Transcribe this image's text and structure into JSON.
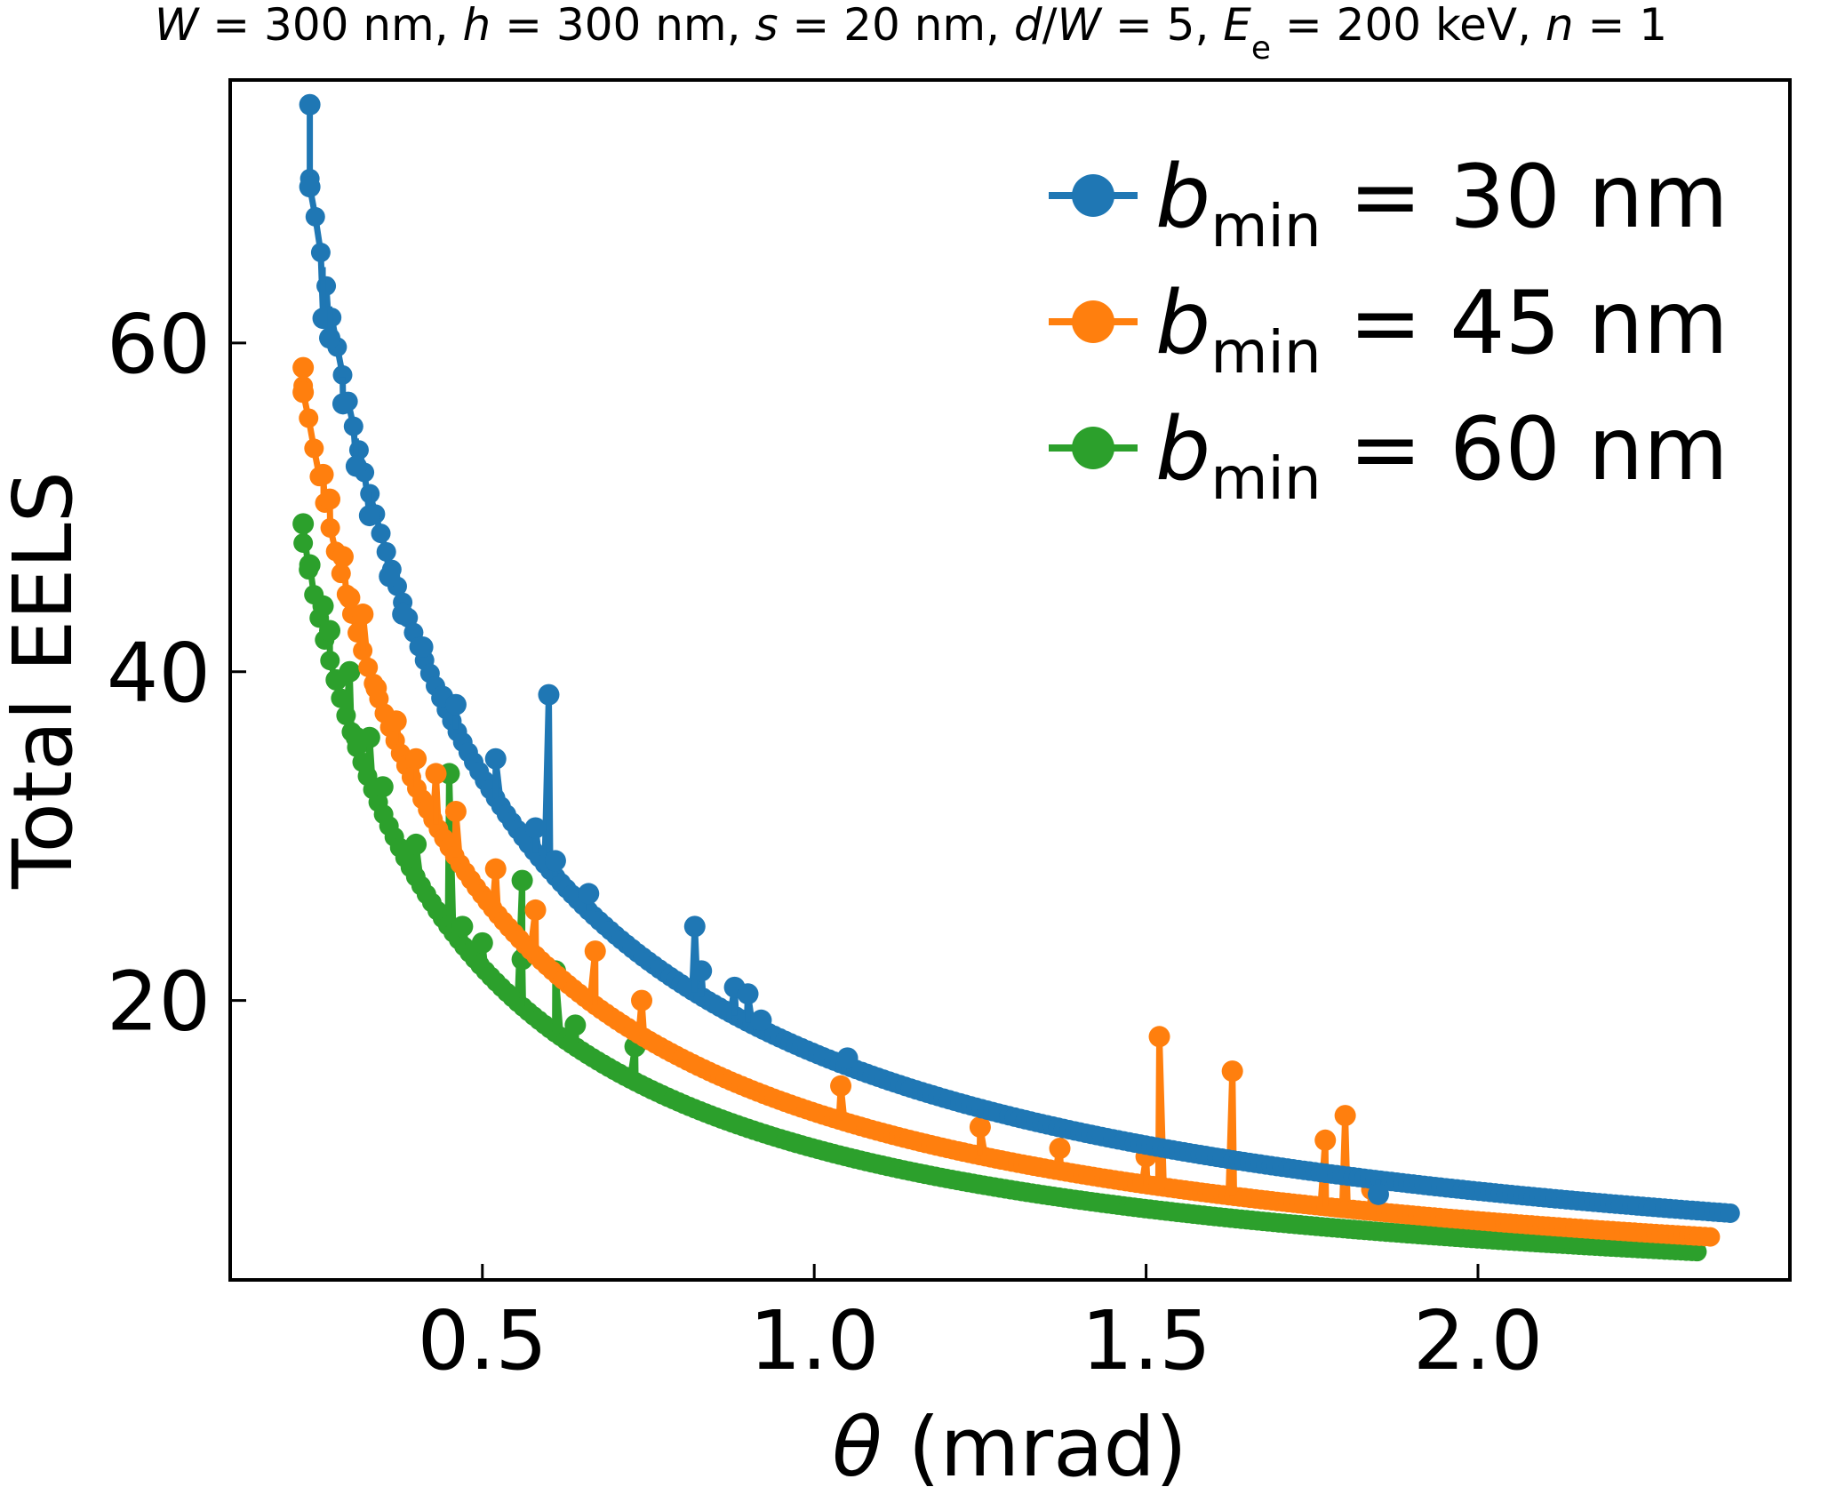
{
  "chart_data": {
    "type": "line",
    "title_parts": [
      "W",
      " = 300 nm, ",
      "h",
      " = 300 nm, ",
      "s",
      " = 20 nm, ",
      "d",
      "/",
      "W",
      " = 5, ",
      "E",
      "e",
      " = 200 keV, ",
      "n",
      " = 1"
    ],
    "xlabel_symbol": "θ",
    "xlabel_unit": " (mrad)",
    "ylabel": "Total EELS",
    "xlim": [
      0.12,
      2.47
    ],
    "ylim": [
      3,
      76
    ],
    "xticks": [
      0.5,
      1.0,
      1.5,
      2.0
    ],
    "xtick_labels": [
      "0.5",
      "1.0",
      "1.5",
      "2.0"
    ],
    "yticks": [
      20,
      40,
      60
    ],
    "ytick_labels": [
      "20",
      "40",
      "60"
    ],
    "grid": false,
    "legend_position": "top-right",
    "series": [
      {
        "name_symbol": "b",
        "name_sub": "min",
        "name_rest": " = 30 nm",
        "color": "#1f77b4",
        "theta_min": 0.24,
        "theta_max": 2.38,
        "base_curve_k": 16.8,
        "points": [
          [
            0.24,
            74.5
          ],
          [
            0.24,
            69.5
          ],
          [
            0.26,
            61.5
          ],
          [
            0.27,
            60.3
          ],
          [
            0.29,
            56.3
          ],
          [
            0.31,
            52.5
          ],
          [
            0.33,
            49.5
          ],
          [
            0.36,
            45.8
          ],
          [
            0.38,
            43.5
          ],
          [
            0.41,
            41.5
          ],
          [
            0.44,
            38.5
          ],
          [
            0.46,
            38.0
          ],
          [
            0.52,
            34.7
          ],
          [
            0.58,
            30.5
          ],
          [
            0.6,
            38.6
          ],
          [
            0.61,
            28.5
          ],
          [
            0.66,
            26.5
          ],
          [
            0.82,
            24.5
          ],
          [
            0.83,
            21.8
          ],
          [
            0.88,
            20.8
          ],
          [
            0.9,
            20.4
          ],
          [
            0.92,
            18.8
          ],
          [
            1.05,
            16.5
          ],
          [
            1.85,
            8.2
          ]
        ]
      },
      {
        "name_symbol": "b",
        "name_sub": "min",
        "name_rest": " = 45 nm",
        "color": "#ff7f0e",
        "theta_min": 0.23,
        "theta_max": 2.35,
        "base_curve_k": 13.2,
        "points": [
          [
            0.23,
            58.5
          ],
          [
            0.23,
            57.0
          ],
          [
            0.26,
            52.0
          ],
          [
            0.27,
            50.5
          ],
          [
            0.29,
            47.0
          ],
          [
            0.3,
            44.5
          ],
          [
            0.32,
            43.5
          ],
          [
            0.34,
            39.0
          ],
          [
            0.37,
            37.0
          ],
          [
            0.4,
            34.7
          ],
          [
            0.43,
            33.8
          ],
          [
            0.46,
            31.5
          ],
          [
            0.52,
            28.0
          ],
          [
            0.58,
            25.5
          ],
          [
            0.67,
            23.0
          ],
          [
            0.74,
            20.0
          ],
          [
            1.04,
            14.8
          ],
          [
            1.25,
            12.3
          ],
          [
            1.37,
            11.0
          ],
          [
            1.5,
            10.5
          ],
          [
            1.52,
            17.8
          ],
          [
            1.63,
            15.7
          ],
          [
            1.77,
            11.5
          ],
          [
            1.8,
            13.0
          ],
          [
            1.84,
            8.5
          ]
        ]
      },
      {
        "name_symbol": "b",
        "name_sub": "min",
        "name_rest": " = 60 nm",
        "color": "#2ca02c",
        "theta_min": 0.23,
        "theta_max": 2.33,
        "base_curve_k": 11.0,
        "points": [
          [
            0.23,
            49.0
          ],
          [
            0.24,
            46.5
          ],
          [
            0.26,
            44.0
          ],
          [
            0.27,
            42.5
          ],
          [
            0.28,
            39.5
          ],
          [
            0.3,
            40.0
          ],
          [
            0.31,
            36.0
          ],
          [
            0.33,
            36.0
          ],
          [
            0.35,
            33.0
          ],
          [
            0.4,
            29.5
          ],
          [
            0.45,
            33.8
          ],
          [
            0.47,
            24.5
          ],
          [
            0.5,
            23.5
          ],
          [
            0.56,
            27.3
          ],
          [
            0.56,
            22.5
          ],
          [
            0.61,
            21.8
          ],
          [
            0.64,
            18.5
          ],
          [
            0.73,
            17.2
          ]
        ]
      }
    ]
  },
  "colors": {
    "blue": "#1f77b4",
    "orange": "#ff7f0e",
    "green": "#2ca02c"
  }
}
